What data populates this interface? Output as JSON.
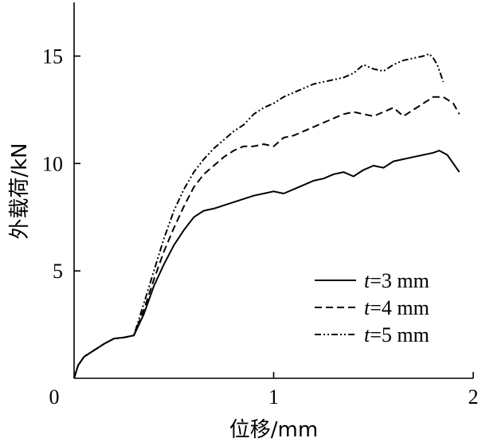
{
  "chart_data": {
    "type": "line",
    "title": "",
    "xlabel": "位移/mm",
    "ylabel": "外载荷/kN",
    "xlim": [
      0,
      2
    ],
    "ylim": [
      0,
      17.5
    ],
    "xticks": [
      0,
      1,
      2
    ],
    "yticks": [
      5,
      10,
      15
    ],
    "x_tick_labels": [
      "0",
      "1",
      "2"
    ],
    "y_tick_labels": [
      "5",
      "10",
      "15"
    ],
    "grid": false,
    "legend_position": "bottom-right",
    "series": [
      {
        "name": "t=3 mm",
        "legend_var": "t",
        "legend_rest": "=3 mm",
        "line_style": "solid",
        "x": [
          0,
          0.02,
          0.05,
          0.1,
          0.15,
          0.2,
          0.25,
          0.3,
          0.35,
          0.4,
          0.45,
          0.5,
          0.55,
          0.6,
          0.65,
          0.7,
          0.8,
          0.9,
          0.95,
          1.0,
          1.05,
          1.1,
          1.15,
          1.2,
          1.25,
          1.3,
          1.35,
          1.4,
          1.45,
          1.5,
          1.55,
          1.6,
          1.65,
          1.7,
          1.75,
          1.8,
          1.83,
          1.87,
          1.9,
          1.93
        ],
        "y": [
          0,
          0.6,
          1.0,
          1.3,
          1.6,
          1.85,
          1.9,
          2.0,
          3.0,
          4.3,
          5.3,
          6.2,
          6.9,
          7.5,
          7.8,
          7.9,
          8.2,
          8.5,
          8.6,
          8.7,
          8.6,
          8.8,
          9.0,
          9.2,
          9.3,
          9.5,
          9.6,
          9.4,
          9.7,
          9.9,
          9.8,
          10.1,
          10.2,
          10.3,
          10.4,
          10.5,
          10.6,
          10.4,
          10.0,
          9.6
        ]
      },
      {
        "name": "t=4 mm",
        "legend_var": "t",
        "legend_rest": "=4 mm",
        "line_style": "dashed",
        "x": [
          0,
          0.02,
          0.05,
          0.1,
          0.15,
          0.2,
          0.25,
          0.3,
          0.35,
          0.4,
          0.45,
          0.5,
          0.55,
          0.6,
          0.65,
          0.7,
          0.75,
          0.8,
          0.85,
          0.9,
          0.95,
          1.0,
          1.05,
          1.1,
          1.15,
          1.2,
          1.25,
          1.3,
          1.35,
          1.4,
          1.45,
          1.5,
          1.55,
          1.6,
          1.65,
          1.7,
          1.75,
          1.8,
          1.85,
          1.9,
          1.93
        ],
        "y": [
          0,
          0.6,
          1.0,
          1.3,
          1.6,
          1.85,
          1.9,
          2.0,
          3.2,
          4.6,
          5.9,
          7.0,
          8.0,
          8.9,
          9.5,
          9.9,
          10.3,
          10.6,
          10.8,
          10.8,
          10.9,
          10.8,
          11.2,
          11.3,
          11.5,
          11.7,
          11.9,
          12.1,
          12.3,
          12.4,
          12.3,
          12.2,
          12.4,
          12.6,
          12.2,
          12.5,
          12.8,
          13.1,
          13.1,
          12.8,
          12.3
        ]
      },
      {
        "name": "t=5 mm",
        "legend_var": "t",
        "legend_rest": "=5 mm",
        "line_style": "dash-dot-dot",
        "x": [
          0,
          0.02,
          0.05,
          0.1,
          0.15,
          0.2,
          0.25,
          0.3,
          0.35,
          0.4,
          0.45,
          0.5,
          0.55,
          0.6,
          0.65,
          0.7,
          0.75,
          0.8,
          0.85,
          0.9,
          0.95,
          1.0,
          1.05,
          1.1,
          1.15,
          1.2,
          1.25,
          1.3,
          1.35,
          1.4,
          1.45,
          1.5,
          1.55,
          1.6,
          1.65,
          1.7,
          1.75,
          1.78,
          1.8,
          1.82,
          1.85
        ],
        "y": [
          0,
          0.6,
          1.0,
          1.3,
          1.6,
          1.85,
          1.9,
          2.0,
          3.5,
          5.0,
          6.5,
          7.8,
          8.8,
          9.6,
          10.2,
          10.7,
          11.1,
          11.5,
          11.8,
          12.3,
          12.6,
          12.8,
          13.1,
          13.3,
          13.5,
          13.7,
          13.8,
          13.9,
          14.0,
          14.2,
          14.6,
          14.4,
          14.3,
          14.6,
          14.8,
          14.9,
          15.0,
          15.1,
          14.9,
          14.6,
          13.8
        ]
      }
    ]
  }
}
